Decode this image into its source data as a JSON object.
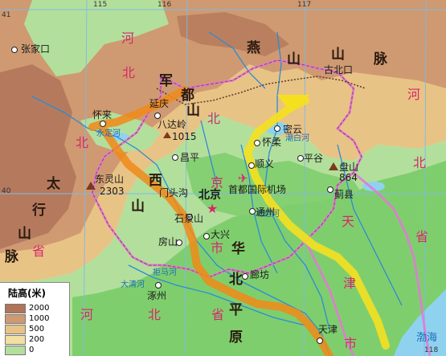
{
  "map": {
    "colors": {
      "plain_lowest": "#7fce6e",
      "plain_low": "#b3df9c",
      "hills": "#f1e0a1",
      "mountains_mid": "#e8c386",
      "mountains_high": "#cf9a71",
      "highest": "#b07459",
      "water": "#8fd2f0",
      "river": "#2c8bd6",
      "boundary": "#e07ad6",
      "route_orange": "#f08a18",
      "route_yellow": "#f5e020",
      "graticule": "#7fb9e3"
    },
    "longitude_labels": [
      "115",
      "116",
      "117",
      "118"
    ],
    "latitude_labels": [
      "41",
      "40"
    ],
    "province_text": {
      "hebei_top": [
        "河",
        "北"
      ],
      "yan_mountains": [
        "燕",
        "山",
        "山",
        "脉"
      ],
      "jundu_mountains": [
        "军",
        "都",
        "山"
      ],
      "taihang_mountains": [
        "太",
        "行",
        "山",
        "脉"
      ],
      "hebei_left": [
        "北",
        "省"
      ],
      "beijing_city": [
        "北",
        "京",
        "市"
      ],
      "huabei_plain": [
        "华",
        "北",
        "平",
        "原"
      ],
      "hebei_bottom": [
        "河",
        "北",
        "省"
      ],
      "hebei_right": [
        "河",
        "北",
        "省"
      ],
      "tianjin_city": [
        "天",
        "津",
        "市"
      ],
      "west_mountains": [
        "西",
        "山"
      ]
    },
    "cities": {
      "zhangjiakou": "张家口",
      "huailai": "怀来",
      "yanqing": "延庆",
      "badaling": "八达岭",
      "badaling_height": "1015",
      "changping": "昌平",
      "miyun": "密云",
      "huairou": "怀柔",
      "shunyi": "顺义",
      "pinggu": "平谷",
      "jixian": "蓟县",
      "dongling": "东灵山",
      "dongling_height": "2303",
      "panshan": "盘山",
      "panshan_height": "864",
      "gubeikou": "古北口",
      "beijing": "北京",
      "airport": "首都国际机场",
      "tongzhou": "通州",
      "shijingshan": "石景山",
      "daxing": "大兴",
      "fangshan": "房山",
      "langfang": "廊坊",
      "zhuozhou": "涿州",
      "tianjin": "天津",
      "bohai": "渤海",
      "mentougou": "门头沟"
    },
    "river_text": [
      "永定河",
      "潮白河",
      "拒马河",
      "北运河",
      "大清河"
    ],
    "legend": {
      "title": "陆高(米)",
      "items": [
        {
          "label": "2000",
          "color": "#b07459"
        },
        {
          "label": "1000",
          "color": "#cf9a71"
        },
        {
          "label": "500",
          "color": "#e8c386"
        },
        {
          "label": "200",
          "color": "#f1e0a1"
        },
        {
          "label": "0",
          "color": "#b3df9c"
        }
      ]
    }
  }
}
